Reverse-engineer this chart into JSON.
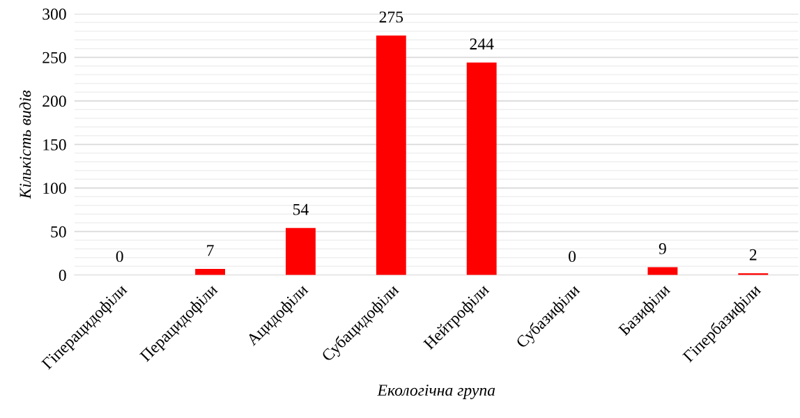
{
  "chart_data": {
    "type": "bar",
    "xlabel": "Екологічна група",
    "ylabel": "Кількість видів",
    "categories": [
      "Гіперацидофіли",
      "Перацидофіли",
      "Ацидофіли",
      "Субацидофіли",
      "Нейтрофіли",
      "Субазифіли",
      "Базифіли",
      "Гіпербазифіли"
    ],
    "values": [
      0,
      7,
      54,
      275,
      244,
      0,
      9,
      2
    ],
    "color": "#ff0000",
    "data_labels": true,
    "grid": "y",
    "ylim": [
      0,
      300
    ],
    "yticks": [
      0,
      {
        "value": 10,
        "label": null
      },
      {
        "value": 20,
        "label": null
      },
      {
        "value": 30,
        "label": null
      },
      {
        "value": 40,
        "label": null
      },
      50,
      {
        "value": 60,
        "label": null
      },
      {
        "value": 70,
        "label": null
      },
      {
        "value": 80,
        "label": null
      },
      {
        "value": 90,
        "label": null
      },
      100,
      {
        "value": 110,
        "label": null
      },
      {
        "value": 120,
        "label": null
      },
      {
        "value": 130,
        "label": null
      },
      {
        "value": 140,
        "label": null
      },
      150,
      {
        "value": 160,
        "label": null
      },
      {
        "value": 170,
        "label": null
      },
      {
        "value": 180,
        "label": null
      },
      {
        "value": 190,
        "label": null
      },
      200,
      {
        "value": 210,
        "label": null
      },
      {
        "value": 220,
        "label": null
      },
      {
        "value": 230,
        "label": null
      },
      {
        "value": 240,
        "label": null
      },
      250,
      {
        "value": 260,
        "label": null
      },
      {
        "value": 270,
        "label": null
      },
      {
        "value": 280,
        "label": null
      },
      {
        "value": 290,
        "label": null
      },
      300
    ]
  }
}
